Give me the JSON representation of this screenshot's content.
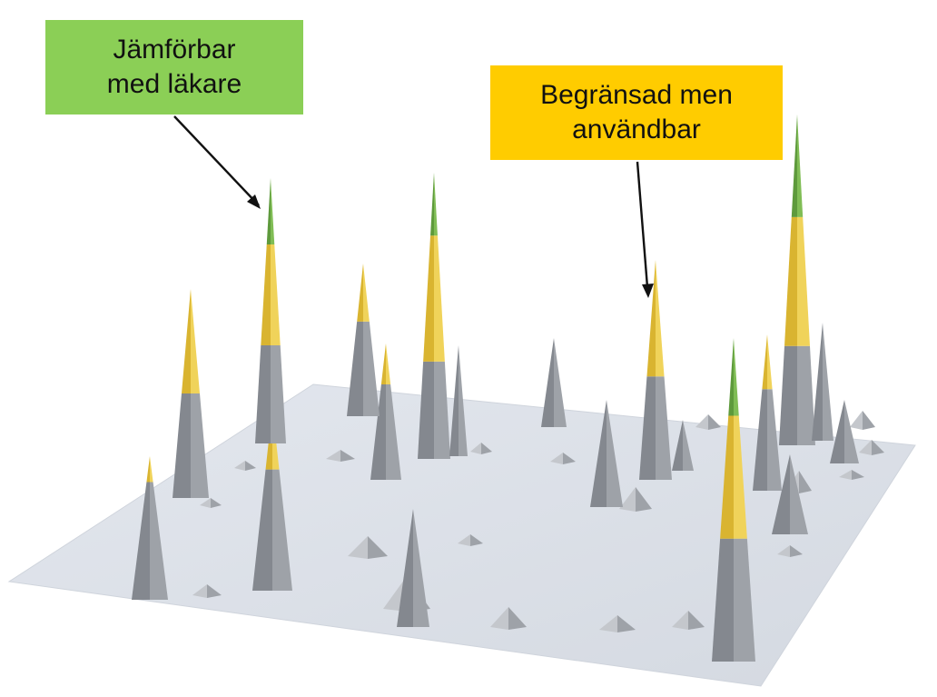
{
  "colors": {
    "plane": "#dde1e8",
    "plane_edge": "#ccd1da",
    "spike_gray": "#9ea2a8",
    "spike_gray_dark": "#84888f",
    "spike_gray_light": "#c4c7cc",
    "spike_yellow": "#d9b430",
    "spike_yellow_light": "#f0d35a",
    "spike_green": "#5e9a3c",
    "spike_green_light": "#80bd55",
    "callout_green": "#8bcf56",
    "callout_yellow": "#ffcc00",
    "arrow": "#111111"
  },
  "callouts": {
    "green": {
      "text": "Jämförbar\nmed läkare",
      "icon": "pointer-arrow"
    },
    "yellow": {
      "text": "Begränsad men\nanvändbar",
      "icon": "pointer-arrow"
    }
  },
  "legend_bands": [
    "gray",
    "yellow",
    "green"
  ]
}
